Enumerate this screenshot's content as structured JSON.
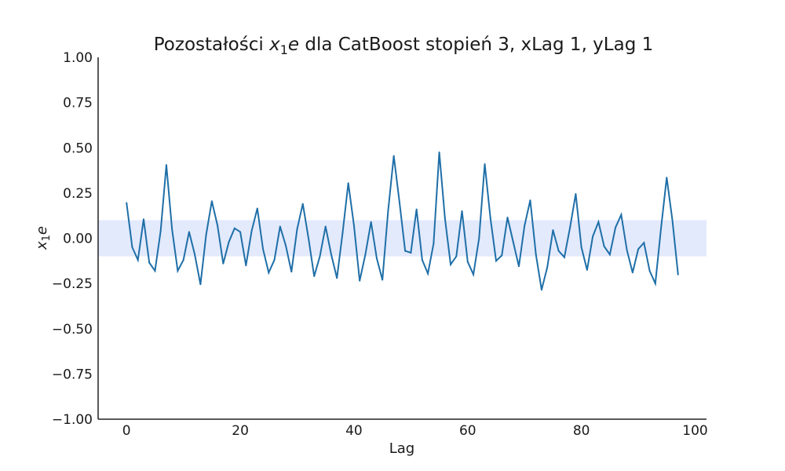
{
  "chart_data": {
    "type": "line",
    "title_prefix": "Pozostałości ",
    "title_var_main": "x",
    "title_var_sub": "1",
    "title_var_tail": "e",
    "title_suffix": " dla CatBoost stopień 3, xLag 1, yLag 1",
    "xlabel": "Lag",
    "ylabel_main": "x",
    "ylabel_sub": "1",
    "ylabel_tail": "e",
    "xlim": [
      -5,
      102
    ],
    "ylim": [
      -1.0,
      1.0
    ],
    "x_ticks": [
      0,
      20,
      40,
      60,
      80,
      100
    ],
    "x_tick_labels": [
      "0",
      "20",
      "40",
      "60",
      "80",
      "100"
    ],
    "y_ticks": [
      1.0,
      0.75,
      0.5,
      0.25,
      0.0,
      -0.25,
      -0.5,
      -0.75,
      -1.0
    ],
    "y_tick_labels": [
      "1.00",
      "0.75",
      "0.50",
      "0.25",
      "0.00",
      "−0.25",
      "−0.50",
      "−0.75",
      "−1.00"
    ],
    "confidence_band": [
      -0.1,
      0.1
    ],
    "band_color": "#e3eafc",
    "line_color": "#1f6fa8",
    "grid": false,
    "series": [
      {
        "x": [
          0,
          1,
          2,
          3,
          4,
          5,
          6,
          7,
          8,
          9,
          10,
          11,
          12,
          13,
          14,
          15,
          16,
          17,
          18,
          19,
          20,
          21,
          22,
          23,
          24,
          25,
          26,
          27,
          28,
          29,
          30,
          31,
          32,
          33,
          34,
          35,
          36,
          37,
          38,
          39,
          40,
          41,
          42,
          43,
          44,
          45,
          46,
          47,
          48,
          49,
          50,
          51,
          52,
          53,
          54,
          55,
          56,
          57,
          58,
          59,
          60,
          61,
          62,
          63,
          64,
          65,
          66,
          67,
          68,
          69,
          70,
          71,
          72,
          73,
          74,
          75,
          76,
          77,
          78,
          79,
          80,
          81,
          82,
          83,
          84,
          85,
          86,
          87,
          88,
          89,
          90,
          91,
          92,
          93,
          94,
          95,
          96,
          97
        ],
        "values": [
          0.195,
          -0.05,
          -0.12,
          0.105,
          -0.135,
          -0.18,
          0.04,
          0.405,
          0.05,
          -0.18,
          -0.12,
          0.035,
          -0.09,
          -0.255,
          0.02,
          0.205,
          0.07,
          -0.14,
          -0.02,
          0.055,
          0.035,
          -0.15,
          0.04,
          0.165,
          -0.06,
          -0.19,
          -0.12,
          0.065,
          -0.04,
          -0.185,
          0.05,
          0.19,
          0.0,
          -0.21,
          -0.1,
          0.065,
          -0.09,
          -0.22,
          0.03,
          0.305,
          0.07,
          -0.235,
          -0.09,
          0.09,
          -0.11,
          -0.23,
          0.15,
          0.455,
          0.2,
          -0.07,
          -0.08,
          0.16,
          -0.12,
          -0.195,
          -0.03,
          0.475,
          0.11,
          -0.145,
          -0.1,
          0.15,
          -0.13,
          -0.2,
          0.0,
          0.41,
          0.11,
          -0.125,
          -0.095,
          0.115,
          -0.02,
          -0.155,
          0.07,
          0.21,
          -0.09,
          -0.285,
          -0.16,
          0.045,
          -0.07,
          -0.105,
          0.06,
          0.245,
          -0.05,
          -0.175,
          0.01,
          0.09,
          -0.045,
          -0.09,
          0.06,
          0.13,
          -0.065,
          -0.19,
          -0.06,
          -0.025,
          -0.18,
          -0.25,
          0.055,
          0.335,
          0.1,
          -0.2
        ]
      }
    ]
  }
}
